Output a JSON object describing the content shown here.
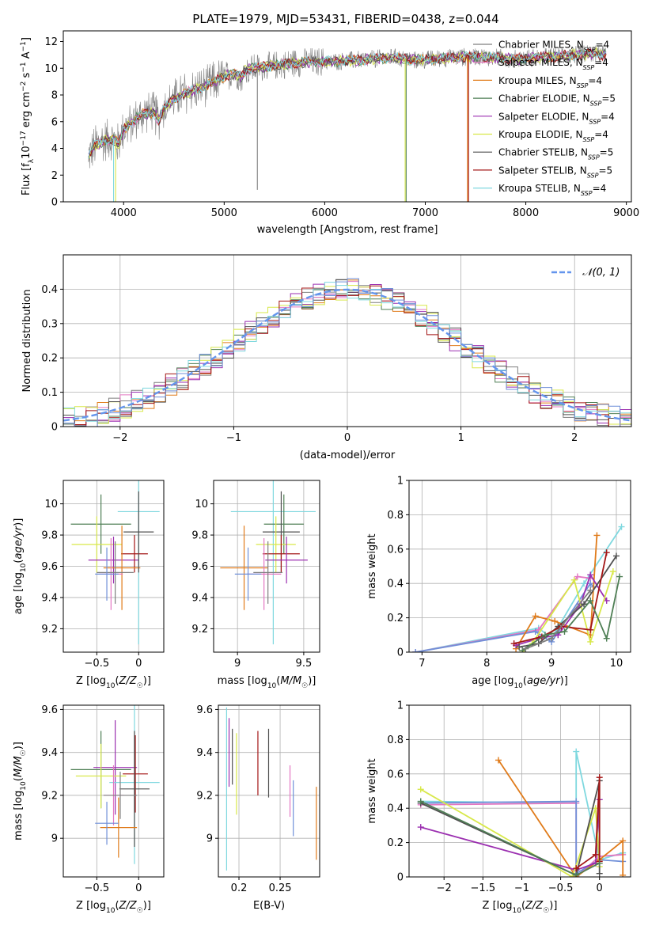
{
  "figure": {
    "title": "PLATE=1979, MJD=53431, FIBERID=0438, z=0.044"
  },
  "colors": {
    "Chabrier MILES": "#7f7f7f",
    "Salpeter MILES": "#e377c2",
    "Kroupa MILES": "#e07b1a",
    "Chabrier ELODIE": "#4f7f55",
    "Salpeter ELODIE": "#9b2fb0",
    "Kroupa ELODIE": "#d8e84a",
    "Chabrier STELIB": "#505050",
    "Salpeter STELIB": "#a31515",
    "Kroupa STELIB": "#7fd8df",
    "spectrum": "#808080",
    "gaussian": "#6495ed",
    "extra_blue": "#6f8fd8"
  },
  "chart_data": [
    {
      "id": "spectrum",
      "type": "line",
      "title": "PLATE=1979, MJD=53431, FIBERID=0438, z=0.044",
      "xlabel": "wavelength [Angstrom, rest frame]",
      "ylabel": "Flux [f_λ10^-17 erg cm^-2 s^-1 A^-1]",
      "xlim": [
        3400,
        9050
      ],
      "ylim": [
        0,
        12.8
      ],
      "xticks": [
        4000,
        5000,
        6000,
        7000,
        8000,
        9000
      ],
      "yticks": [
        0,
        2,
        4,
        6,
        8,
        10,
        12
      ],
      "grid": false,
      "legend": "top-right",
      "legend_entries": [
        {
          "label": "Chabrier MILES, N",
          "sub": "SSP",
          "tail": "=4",
          "model": "Chabrier MILES"
        },
        {
          "label": "Salpeter MILES, N",
          "sub": "SSP",
          "tail": "=4",
          "model": "Salpeter MILES"
        },
        {
          "label": "Kroupa MILES, N",
          "sub": "SSP",
          "tail": "=4",
          "model": "Kroupa MILES"
        },
        {
          "label": "Chabrier ELODIE, N",
          "sub": "SSP",
          "tail": "=5",
          "model": "Chabrier ELODIE"
        },
        {
          "label": "Salpeter ELODIE, N",
          "sub": "SSP",
          "tail": "=4",
          "model": "Salpeter ELODIE"
        },
        {
          "label": "Kroupa ELODIE, N",
          "sub": "SSP",
          "tail": "=4",
          "model": "Kroupa ELODIE"
        },
        {
          "label": "Chabrier STELIB, N",
          "sub": "SSP",
          "tail": "=5",
          "model": "Chabrier STELIB"
        },
        {
          "label": "Salpeter STELIB, N",
          "sub": "SSP",
          "tail": "=5",
          "model": "Salpeter STELIB"
        },
        {
          "label": "Kroupa STELIB, N",
          "sub": "SSP",
          "tail": "=4",
          "model": "Kroupa STELIB"
        }
      ],
      "continuum": [
        [
          3650,
          3.4
        ],
        [
          3700,
          4.1
        ],
        [
          3800,
          4.6
        ],
        [
          3900,
          4.7
        ],
        [
          3950,
          4.3
        ],
        [
          4000,
          5.4
        ],
        [
          4100,
          6.1
        ],
        [
          4200,
          6.6
        ],
        [
          4300,
          6.7
        ],
        [
          4350,
          6.1
        ],
        [
          4400,
          7.0
        ],
        [
          4500,
          7.7
        ],
        [
          4600,
          8.1
        ],
        [
          4700,
          8.4
        ],
        [
          4800,
          8.6
        ],
        [
          4900,
          9.0
        ],
        [
          5000,
          9.4
        ],
        [
          5100,
          9.6
        ],
        [
          5175,
          9.3
        ],
        [
          5200,
          9.8
        ],
        [
          5300,
          10.0
        ],
        [
          5500,
          10.2
        ],
        [
          5700,
          10.4
        ],
        [
          5900,
          10.5
        ],
        [
          6100,
          10.5
        ],
        [
          6300,
          10.6
        ],
        [
          6500,
          10.7
        ],
        [
          6700,
          10.8
        ],
        [
          6900,
          10.6
        ],
        [
          7100,
          10.7
        ],
        [
          7300,
          10.8
        ],
        [
          7500,
          10.9
        ],
        [
          7700,
          10.8
        ],
        [
          7900,
          10.7
        ],
        [
          8100,
          10.8
        ],
        [
          8300,
          10.9
        ],
        [
          8500,
          11.0
        ],
        [
          8700,
          11.1
        ],
        [
          8800,
          11.0
        ]
      ],
      "dropouts": [
        {
          "x": 3900,
          "y": 0.0,
          "model": "Kroupa STELIB"
        },
        {
          "x": 3920,
          "y": 0.0,
          "model": "Kroupa ELODIE"
        },
        {
          "x": 5330,
          "y": 0.9,
          "model": "spectrum"
        },
        {
          "x": 6800,
          "y": 0.0,
          "model": "Kroupa ELODIE"
        },
        {
          "x": 6810,
          "y": 0.0,
          "model": "Chabrier ELODIE"
        },
        {
          "x": 7420,
          "y": 0.0,
          "model": "Kroupa MILES"
        },
        {
          "x": 7430,
          "y": 0.0,
          "model": "Salpeter STELIB"
        }
      ]
    },
    {
      "id": "residuals",
      "type": "histogram",
      "xlabel": "(data-model)/error",
      "ylabel": "Normed distribution",
      "xlim": [
        -2.5,
        2.5
      ],
      "ylim": [
        0,
        0.5
      ],
      "xticks": [
        -2,
        -1,
        0,
        1,
        2
      ],
      "yticks": [
        0.0,
        0.1,
        0.2,
        0.3,
        0.4
      ],
      "grid": true,
      "legend": "top-right",
      "gaussian_label": "𝒩(0, 1)",
      "bin_width": 0.1,
      "bins_start": -2.5
    },
    {
      "id": "age_vs_Z",
      "type": "errorbar",
      "xlabel": "Z [log10(Z/Z☉)]",
      "ylabel": "age [log10(age/yr)]",
      "xlim": [
        -0.9,
        0.3
      ],
      "ylim": [
        9.05,
        10.15
      ],
      "xticks": [
        -0.5,
        0.0
      ],
      "yticks": [
        9.2,
        9.4,
        9.6,
        9.8,
        10.0
      ],
      "grid": true,
      "points": [
        {
          "model": "Chabrier ELODIE",
          "x": -0.45,
          "xerr": 0.36,
          "y": 9.87,
          "yerr": 0.19
        },
        {
          "model": "Kroupa STELIB",
          "x": 0.0,
          "xerr": 0.25,
          "y": 9.95,
          "yerr": 0.85
        },
        {
          "model": "Kroupa ELODIE",
          "x": -0.5,
          "xerr": 0.3,
          "y": 9.74,
          "yerr": 0.18
        },
        {
          "model": "Salpeter ELODIE",
          "x": -0.3,
          "xerr": 0.3,
          "y": 9.64,
          "yerr": 0.15
        },
        {
          "model": "Salpeter STELIB",
          "x": -0.05,
          "xerr": 0.16,
          "y": 9.68,
          "yerr": 0.12
        },
        {
          "model": "Kroupa MILES",
          "x": -0.2,
          "xerr": 0.22,
          "y": 9.59,
          "yerr": 0.27
        },
        {
          "model": "Chabrier STELIB",
          "x": 0.0,
          "xerr": 0.18,
          "y": 9.82,
          "yerr": 0.26
        },
        {
          "model": "Salpeter MILES",
          "x": -0.33,
          "xerr": 0.14,
          "y": 9.55,
          "yerr": 0.23
        },
        {
          "model": "Chabrier MILES",
          "x": -0.28,
          "xerr": 0.22,
          "y": 9.56,
          "yerr": 0.2
        },
        {
          "model": "extra_blue",
          "x": -0.38,
          "xerr": 0.14,
          "y": 9.55,
          "yerr": 0.17
        }
      ]
    },
    {
      "id": "age_vs_mass",
      "type": "errorbar",
      "xlabel": "mass [log10(M/M☉)]",
      "ylabel": "",
      "xlim": [
        8.82,
        9.62
      ],
      "ylim": [
        9.05,
        10.15
      ],
      "xticks": [
        9.0,
        9.5
      ],
      "yticks": [
        9.2,
        9.4,
        9.6,
        9.8,
        10.0
      ],
      "grid": true,
      "points": [
        {
          "model": "Kroupa STELIB",
          "x": 9.27,
          "xerr": 0.32,
          "y": 9.95,
          "yerr": 0.85
        },
        {
          "model": "Chabrier ELODIE",
          "x": 9.35,
          "xerr": 0.15,
          "y": 9.87,
          "yerr": 0.19
        },
        {
          "model": "Chabrier STELIB",
          "x": 9.33,
          "xerr": 0.14,
          "y": 9.82,
          "yerr": 0.26
        },
        {
          "model": "Kroupa ELODIE",
          "x": 9.29,
          "xerr": 0.15,
          "y": 9.74,
          "yerr": 0.18
        },
        {
          "model": "Salpeter STELIB",
          "x": 9.33,
          "xerr": 0.14,
          "y": 9.68,
          "yerr": 0.12
        },
        {
          "model": "Salpeter ELODIE",
          "x": 9.37,
          "xerr": 0.16,
          "y": 9.64,
          "yerr": 0.15
        },
        {
          "model": "Kroupa MILES",
          "x": 9.05,
          "xerr": 0.18,
          "y": 9.59,
          "yerr": 0.27
        },
        {
          "model": "Salpeter MILES",
          "x": 9.2,
          "xerr": 0.13,
          "y": 9.55,
          "yerr": 0.23
        },
        {
          "model": "Chabrier MILES",
          "x": 9.23,
          "xerr": 0.11,
          "y": 9.56,
          "yerr": 0.2
        },
        {
          "model": "extra_blue",
          "x": 9.08,
          "xerr": 0.1,
          "y": 9.55,
          "yerr": 0.17
        }
      ]
    },
    {
      "id": "massweight_vs_age",
      "type": "line",
      "xlabel": "age [log10(age/yr)]",
      "ylabel": "mass weight",
      "xlim": [
        6.8,
        10.22
      ],
      "ylim": [
        0,
        1.0
      ],
      "xticks": [
        7,
        8,
        9,
        10
      ],
      "yticks": [
        0.0,
        0.2,
        0.4,
        0.6,
        0.8,
        1.0
      ],
      "grid": true,
      "series": [
        {
          "model": "Kroupa STELIB",
          "x": [
            6.9,
            8.8,
            9.0,
            9.5,
            10.08
          ],
          "y": [
            0.0,
            0.14,
            0.08,
            0.4,
            0.73
          ]
        },
        {
          "model": "Salpeter MILES",
          "x": [
            6.9,
            8.8,
            9.4,
            9.6
          ],
          "y": [
            0.0,
            0.13,
            0.44,
            0.43
          ]
        },
        {
          "model": "extra_blue",
          "x": [
            6.9,
            8.75,
            9.0,
            9.6,
            9.65
          ],
          "y": [
            0.0,
            0.12,
            0.06,
            0.4,
            0.38
          ]
        },
        {
          "model": "Kroupa MILES",
          "x": [
            8.45,
            8.75,
            9.05,
            9.6,
            9.7
          ],
          "y": [
            0.02,
            0.21,
            0.18,
            0.1,
            0.68
          ]
        },
        {
          "model": "Salpeter ELODIE",
          "x": [
            8.45,
            8.8,
            9.1,
            9.45,
            9.6,
            9.85
          ],
          "y": [
            0.04,
            0.08,
            0.1,
            0.28,
            0.45,
            0.3
          ]
        },
        {
          "model": "Kroupa ELODIE",
          "x": [
            8.55,
            8.7,
            9.35,
            9.6,
            9.95
          ],
          "y": [
            0.0,
            0.05,
            0.42,
            0.06,
            0.47
          ]
        },
        {
          "model": "Chabrier STELIB",
          "x": [
            8.5,
            8.8,
            9.1,
            9.5,
            10.0
          ],
          "y": [
            0.03,
            0.05,
            0.15,
            0.28,
            0.56
          ]
        },
        {
          "model": "Salpeter STELIB",
          "x": [
            8.42,
            8.85,
            9.15,
            9.6,
            9.85
          ],
          "y": [
            0.05,
            0.09,
            0.15,
            0.13,
            0.58
          ]
        },
        {
          "model": "Chabrier ELODIE",
          "x": [
            8.55,
            8.9,
            9.2,
            9.6,
            9.85,
            10.05
          ],
          "y": [
            0.01,
            0.1,
            0.12,
            0.3,
            0.08,
            0.44
          ]
        },
        {
          "model": "Chabrier MILES",
          "x": [
            8.6,
            9.0,
            9.6
          ],
          "y": [
            0.02,
            0.08,
            0.36
          ]
        }
      ]
    },
    {
      "id": "mass_vs_Z",
      "type": "errorbar",
      "xlabel": "Z [log10(Z/Z☉)]",
      "ylabel": "mass [log10(M/M☉)]",
      "xlim": [
        -0.9,
        0.3
      ],
      "ylim": [
        8.82,
        9.62
      ],
      "xticks": [
        -0.5,
        0.0
      ],
      "yticks": [
        9.0,
        9.2,
        9.4,
        9.6
      ],
      "grid": true,
      "points": [
        {
          "model": "Chabrier ELODIE",
          "x": -0.45,
          "xerr": 0.36,
          "y": 9.32,
          "yerr": 0.18
        },
        {
          "model": "Salpeter ELODIE",
          "x": -0.28,
          "xerr": 0.26,
          "y": 9.33,
          "yerr": 0.22
        },
        {
          "model": "Kroupa STELIB",
          "x": -0.05,
          "xerr": 0.3,
          "y": 9.26,
          "yerr": 0.38
        },
        {
          "model": "Salpeter STELIB",
          "x": -0.04,
          "xerr": 0.15,
          "y": 9.3,
          "yerr": 0.18
        },
        {
          "model": "Kroupa ELODIE",
          "x": -0.45,
          "xerr": 0.3,
          "y": 9.29,
          "yerr": 0.15
        },
        {
          "model": "Chabrier STELIB",
          "x": -0.05,
          "xerr": 0.18,
          "y": 9.23,
          "yerr": 0.27
        },
        {
          "model": "Salpeter MILES",
          "x": -0.3,
          "xerr": 0.12,
          "y": 9.2,
          "yerr": 0.14
        },
        {
          "model": "Kroupa MILES",
          "x": -0.24,
          "xerr": 0.22,
          "y": 9.05,
          "yerr": 0.14
        },
        {
          "model": "extra_blue",
          "x": -0.38,
          "xerr": 0.14,
          "y": 9.07,
          "yerr": 0.1
        },
        {
          "model": "Chabrier MILES",
          "x": -0.22,
          "xerr": 0.2,
          "y": 9.2,
          "yerr": 0.11
        }
      ]
    },
    {
      "id": "mass_vs_EBV",
      "type": "errorbar",
      "xlabel": "E(B-V)",
      "ylabel": "",
      "xlim": [
        0.175,
        0.298
      ],
      "ylim": [
        8.82,
        9.62
      ],
      "xticks": [
        0.2,
        0.25
      ],
      "yticks": [
        9.0,
        9.2,
        9.4,
        9.6
      ],
      "grid": true,
      "points": [
        {
          "model": "Kroupa STELIB",
          "x": 0.185,
          "xerr": 0.0,
          "y": 9.23,
          "yerr": 0.38
        },
        {
          "model": "Salpeter ELODIE",
          "x": 0.188,
          "xerr": 0.0,
          "y": 9.4,
          "yerr": 0.16
        },
        {
          "model": "Chabrier STELIB",
          "x": 0.192,
          "xerr": 0.0,
          "y": 9.38,
          "yerr": 0.13
        },
        {
          "model": "Kroupa ELODIE",
          "x": 0.197,
          "xerr": 0.0,
          "y": 9.3,
          "yerr": 0.19
        },
        {
          "model": "Salpeter STELIB",
          "x": 0.223,
          "xerr": 0.0,
          "y": 9.35,
          "yerr": 0.15
        },
        {
          "model": "Chabrier STELIB",
          "x": 0.236,
          "xerr": 0.0,
          "y": 9.35,
          "yerr": 0.16
        },
        {
          "model": "Salpeter MILES",
          "x": 0.262,
          "xerr": 0.0,
          "y": 9.22,
          "yerr": 0.12
        },
        {
          "model": "extra_blue",
          "x": 0.266,
          "xerr": 0.0,
          "y": 9.14,
          "yerr": 0.13
        },
        {
          "model": "Kroupa MILES",
          "x": 0.294,
          "xerr": 0.0,
          "y": 9.07,
          "yerr": 0.17
        }
      ]
    },
    {
      "id": "massweight_vs_Z",
      "type": "line",
      "xlabel": "Z [log10(Z/Z☉)]",
      "ylabel": "mass weight",
      "xlim": [
        -2.45,
        0.4
      ],
      "ylim": [
        0,
        1.0
      ],
      "xticks": [
        -2.0,
        -1.5,
        -1.0,
        -0.5,
        0.0
      ],
      "yticks": [
        0.0,
        0.2,
        0.4,
        0.6,
        0.8,
        1.0
      ],
      "grid": true,
      "series": [
        {
          "model": "Kroupa STELIB",
          "x": [
            -2.3,
            -0.3,
            -0.3,
            0.0,
            0.3
          ],
          "y": [
            0.44,
            0.43,
            0.73,
            0.1,
            0.14
          ]
        },
        {
          "model": "Salpeter MILES",
          "x": [
            -2.3,
            -0.3,
            -0.3,
            0.0,
            0.3
          ],
          "y": [
            0.42,
            0.43,
            0.0,
            0.12,
            0.13
          ]
        },
        {
          "model": "extra_blue",
          "x": [
            -2.3,
            -0.3,
            -0.3,
            0.0,
            0.3
          ],
          "y": [
            0.43,
            0.44,
            0.02,
            0.1,
            0.09
          ]
        },
        {
          "model": "Kroupa MILES",
          "x": [
            -1.3,
            -0.3,
            0.0,
            0.3,
            0.3
          ],
          "y": [
            0.68,
            0.0,
            0.1,
            0.21,
            0.01
          ]
        },
        {
          "model": "Salpeter ELODIE",
          "x": [
            -2.3,
            -0.3,
            -0.05,
            0.0
          ],
          "y": [
            0.29,
            0.04,
            0.08,
            0.45
          ]
        },
        {
          "model": "Kroupa ELODIE",
          "x": [
            -2.3,
            -0.35,
            -0.05,
            0.0
          ],
          "y": [
            0.51,
            0.0,
            0.4,
            0.06
          ]
        },
        {
          "model": "Chabrier STELIB",
          "x": [
            -2.3,
            -0.3,
            0.0,
            0.0
          ],
          "y": [
            0.43,
            0.01,
            0.56,
            0.02
          ]
        },
        {
          "model": "Salpeter STELIB",
          "x": [
            -0.3,
            -0.05,
            0.0,
            0.0
          ],
          "y": [
            0.05,
            0.13,
            0.58,
            0.09
          ]
        },
        {
          "model": "Chabrier ELODIE",
          "x": [
            -2.3,
            -0.3,
            0.0
          ],
          "y": [
            0.44,
            0.01,
            0.08
          ]
        }
      ]
    }
  ]
}
